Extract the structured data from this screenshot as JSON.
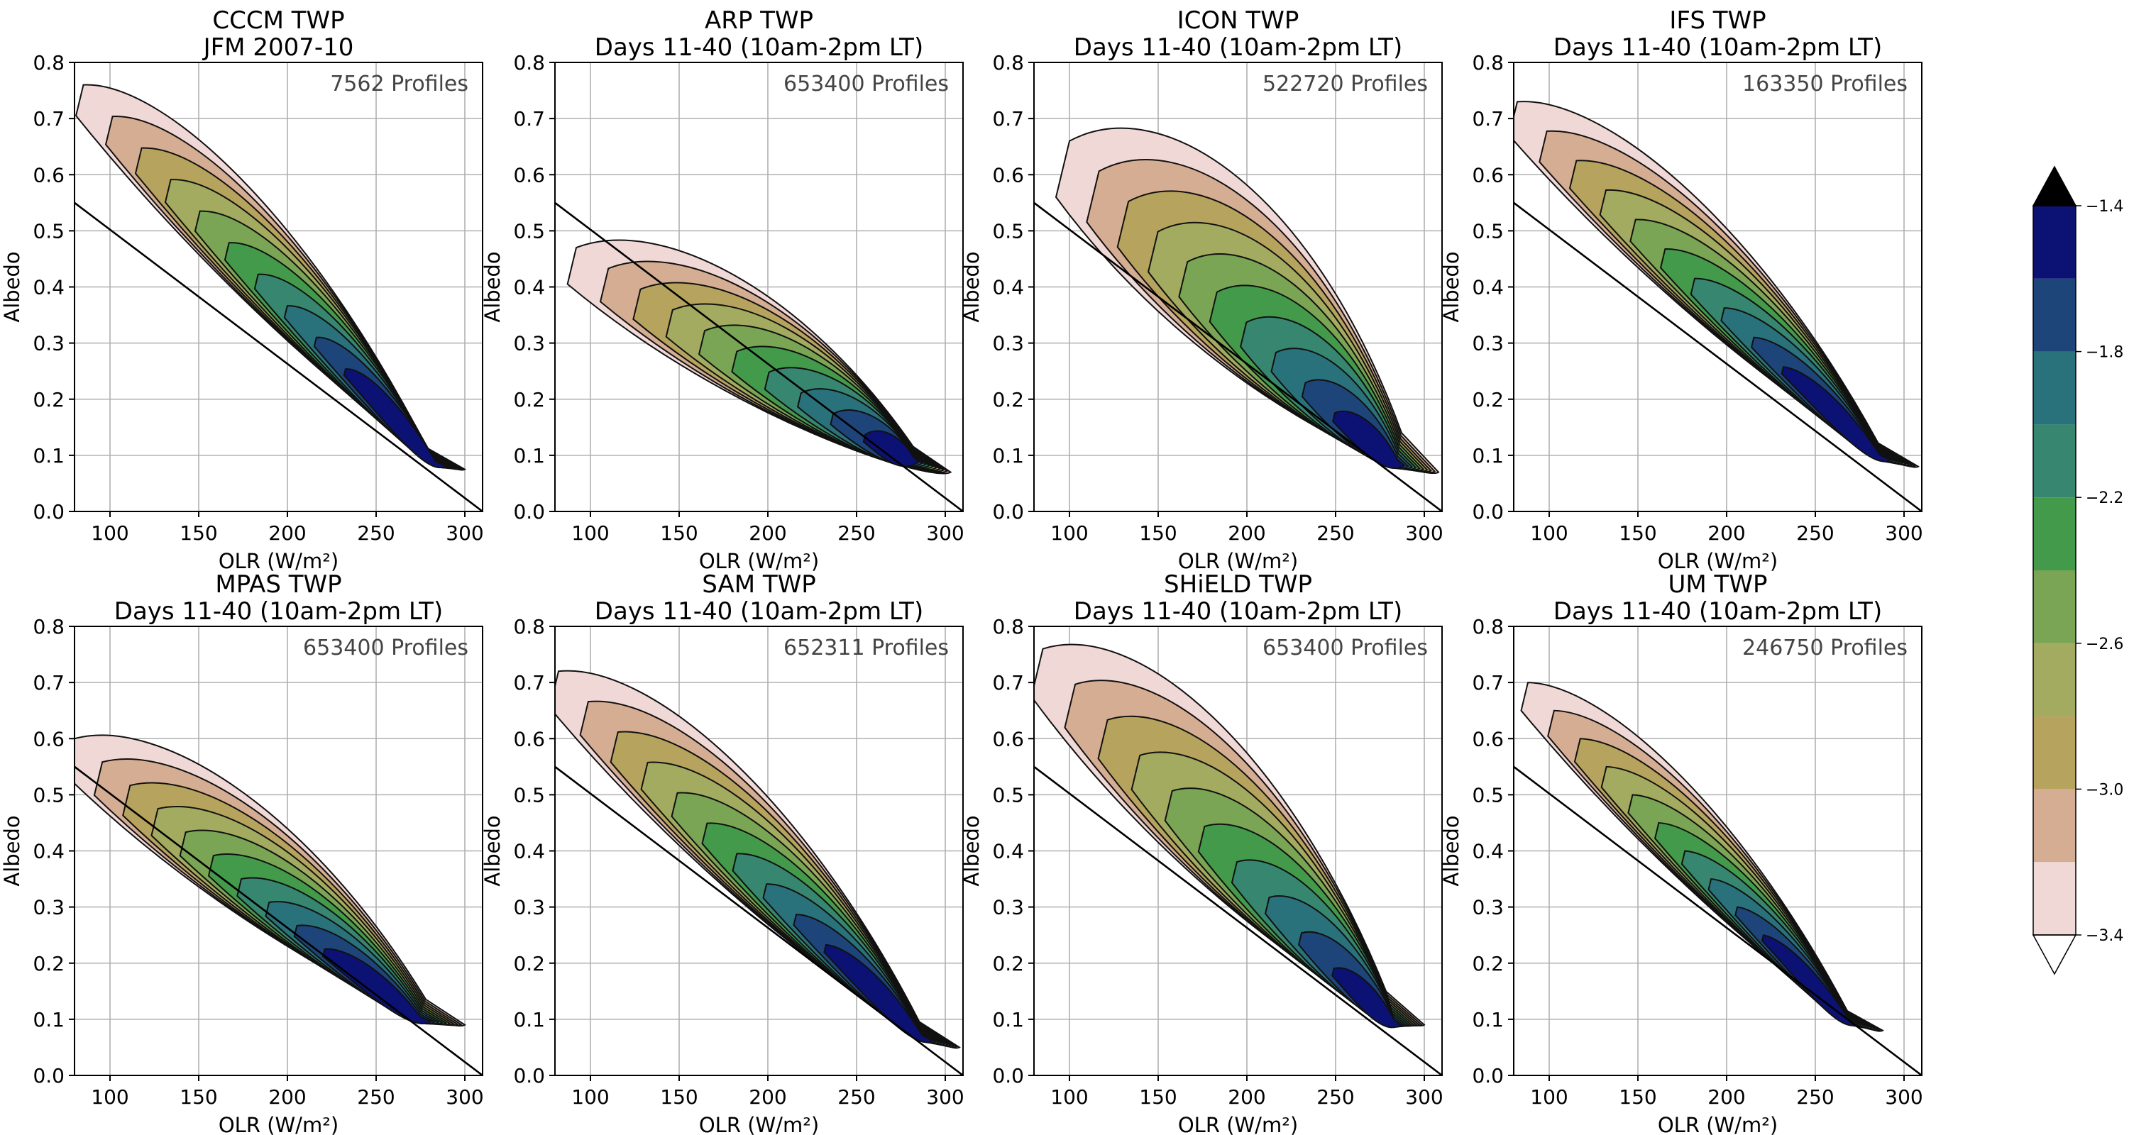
{
  "chart_data": {
    "type": "contour",
    "panels": [
      {
        "title_line1": "CCCM TWP",
        "title_line2": "JFM 2007-10",
        "profiles": "7562 Profiles",
        "mode": "jagged",
        "peak": [
          282,
          0.085
        ],
        "start": [
          85,
          0.76
        ],
        "end": [
          300,
          0.075
        ],
        "width": 0.11
      },
      {
        "title_line1": "ARP TWP",
        "title_line2": "Days 11-40 (10am-2pm LT)",
        "profiles": "653400 Profiles",
        "mode": "low",
        "peak": [
          273,
          0.1
        ],
        "start": [
          92,
          0.47
        ],
        "end": [
          303,
          0.07
        ],
        "width": 0.13
      },
      {
        "title_line1": "ICON TWP",
        "title_line2": "Days 11-40 (10am-2pm LT)",
        "profiles": "522720 Profiles",
        "mode": "broad",
        "peak": [
          276,
          0.09
        ],
        "start": [
          100,
          0.66
        ],
        "end": [
          308,
          0.07
        ],
        "width": 0.2
      },
      {
        "title_line1": "IFS TWP",
        "title_line2": "Days 11-40 (10am-2pm LT)",
        "profiles": "163350 Profiles",
        "mode": "band",
        "peak": [
          282,
          0.1
        ],
        "start": [
          82,
          0.73
        ],
        "end": [
          308,
          0.08
        ],
        "width": 0.12
      },
      {
        "title_line1": "MPAS TWP",
        "title_line2": "Days 11-40 (10am-2pm LT)",
        "profiles": "653400 Profiles",
        "mode": "band",
        "peak": [
          268,
          0.1
        ],
        "start": [
          80,
          0.6
        ],
        "end": [
          300,
          0.09
        ],
        "width": 0.13
      },
      {
        "title_line1": "SAM TWP",
        "title_line2": "Days 11-40 (10am-2pm LT)",
        "profiles": "652311 Profiles",
        "mode": "band",
        "peak": [
          283,
          0.07
        ],
        "start": [
          82,
          0.72
        ],
        "end": [
          308,
          0.05
        ],
        "width": 0.13
      },
      {
        "title_line1": "SHiELD TWP",
        "title_line2": "Days 11-40 (10am-2pm LT)",
        "profiles": "653400 Profiles",
        "mode": "broad",
        "peak": [
          278,
          0.09
        ],
        "start": [
          85,
          0.76
        ],
        "end": [
          300,
          0.09
        ],
        "width": 0.17
      },
      {
        "title_line1": "UM TWP",
        "title_line2": "Days 11-40 (10am-2pm LT)",
        "profiles": "246750 Profiles",
        "mode": "band",
        "peak": [
          265,
          0.1
        ],
        "start": [
          88,
          0.7
        ],
        "end": [
          288,
          0.08
        ],
        "width": 0.1
      }
    ],
    "xlabel": "OLR (W/m²)",
    "ylabel": "Albedo",
    "xlim": [
      80,
      310
    ],
    "ylim": [
      0.0,
      0.8
    ],
    "xticks": [
      100,
      150,
      200,
      250,
      300
    ],
    "yticks": [
      0.0,
      0.1,
      0.2,
      0.3,
      0.4,
      0.5,
      0.6,
      0.7,
      0.8
    ],
    "grid": true,
    "reference_line": {
      "x": [
        80,
        310
      ],
      "y": [
        0.55,
        0.0
      ]
    },
    "colorbar": {
      "ticks": [
        "−1.4",
        "−1.8",
        "−2.2",
        "−2.6",
        "−3.0",
        "−3.4"
      ],
      "tick_values": [
        -1.4,
        -1.8,
        -2.2,
        -2.6,
        -3.0,
        -3.4
      ],
      "levels": [
        -3.4,
        -3.2,
        -3.0,
        -2.8,
        -2.6,
        -2.4,
        -2.2,
        -2.0,
        -1.8,
        -1.6,
        -1.4
      ],
      "colors": [
        "#f0d8d6",
        "#d5ad92",
        "#b6a35d",
        "#a2ab60",
        "#7aa554",
        "#449a4b",
        "#378670",
        "#2a727b",
        "#1d4579",
        "#0c1273"
      ],
      "extend_max_color": "#000000",
      "extend_min_color": "#ffffff"
    }
  }
}
